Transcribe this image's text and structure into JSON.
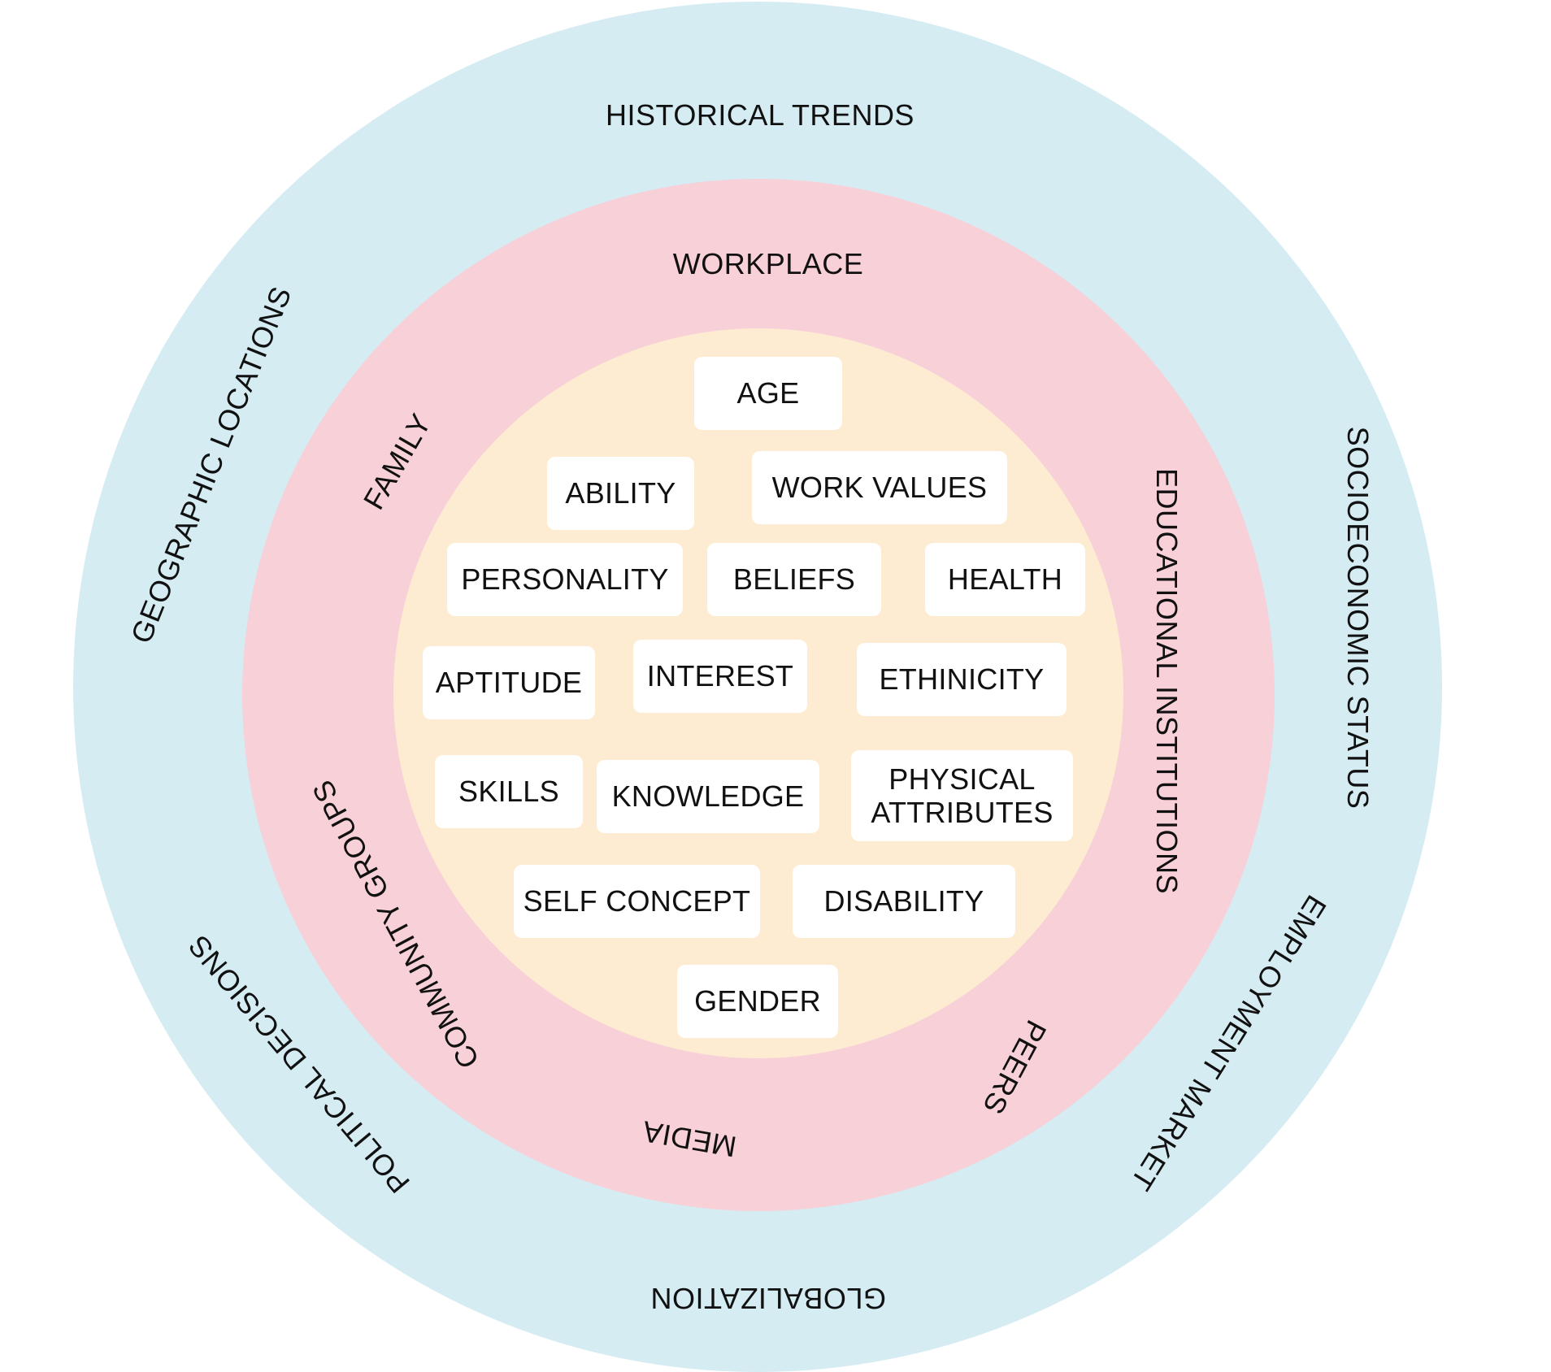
{
  "diagram": {
    "colors": {
      "outer_ring": "#d5ecf3",
      "middle_ring": "#f8d0d8",
      "inner_circle": "#fdecd1",
      "box": "#ffffff",
      "text": "#111111"
    },
    "outer_ring_labels": {
      "historical_trends": "HISTORICAL TRENDS",
      "geographic_locations": "GEOGRAPHIC LOCATIONS",
      "socioeconomic_status": "SOCIOECONOMIC STATUS",
      "employment_market": "EMPLOYMENT MARKET",
      "globalization": "GLOBALIZATION",
      "political_decisions": "POLITICAL DECISIONS"
    },
    "middle_ring_labels": {
      "workplace": "WORKPLACE",
      "family": "FAMILY",
      "educational_institutions": "EDUCATIONAL INSTITUTIONS",
      "community_groups": "COMMUNITY GROUPS",
      "media": "MEDIA",
      "peers": "PEERS"
    },
    "inner_factors": {
      "age": "AGE",
      "ability": "ABILITY",
      "work_values": "WORK VALUES",
      "personality": "PERSONALITY",
      "beliefs": "BELIEFS",
      "health": "HEALTH",
      "aptitude": "APTITUDE",
      "interest": "INTEREST",
      "ethinicity": "ETHINICITY",
      "skills": "SKILLS",
      "knowledge": "KNOWLEDGE",
      "physical_attributes": "PHYSICAL\nATTRIBUTES",
      "self_concept": "SELF CONCEPT",
      "disability": "DISABILITY",
      "gender": "GENDER"
    }
  }
}
